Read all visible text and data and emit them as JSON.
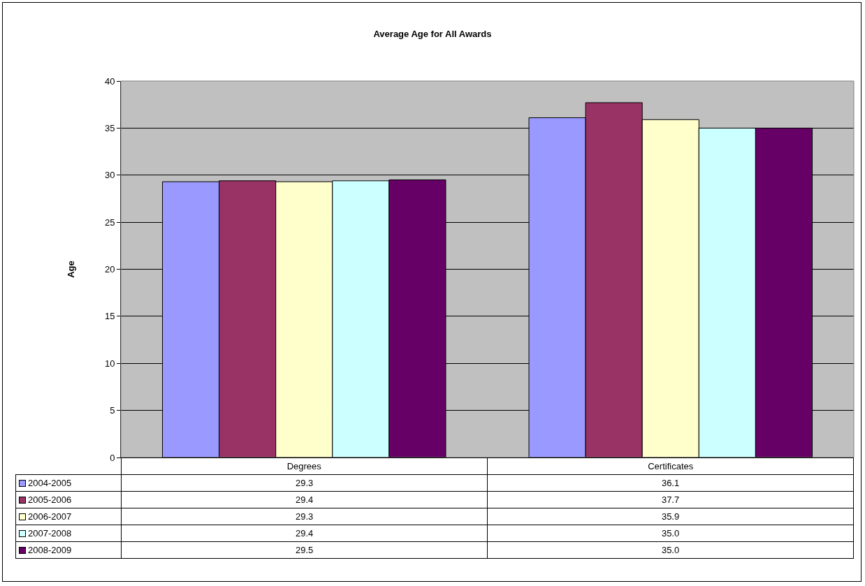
{
  "chart_data": {
    "type": "bar",
    "title": "Average Age for All Awards",
    "ylabel": "Age",
    "categories": [
      "Degrees",
      "Certificates"
    ],
    "series": [
      {
        "name": "2004-2005",
        "color": "#9999ff",
        "values": [
          29.3,
          36.1
        ],
        "value_labels": [
          "29.3",
          "36.1"
        ]
      },
      {
        "name": "2005-2006",
        "color": "#993366",
        "values": [
          29.4,
          37.7
        ],
        "value_labels": [
          "29.4",
          "37.7"
        ]
      },
      {
        "name": "2006-2007",
        "color": "#ffffcc",
        "values": [
          29.3,
          35.9
        ],
        "value_labels": [
          "29.3",
          "35.9"
        ]
      },
      {
        "name": "2007-2008",
        "color": "#ccffff",
        "values": [
          29.4,
          35.0
        ],
        "value_labels": [
          "29.4",
          "35.0"
        ]
      },
      {
        "name": "2008-2009",
        "color": "#660066",
        "values": [
          29.5,
          35.0
        ],
        "value_labels": [
          "29.5",
          "35.0"
        ]
      }
    ],
    "ylim": [
      0,
      40
    ],
    "yticks": [
      0,
      5,
      10,
      15,
      20,
      25,
      30,
      35,
      40
    ],
    "grid": "y",
    "legend": "bottom"
  }
}
